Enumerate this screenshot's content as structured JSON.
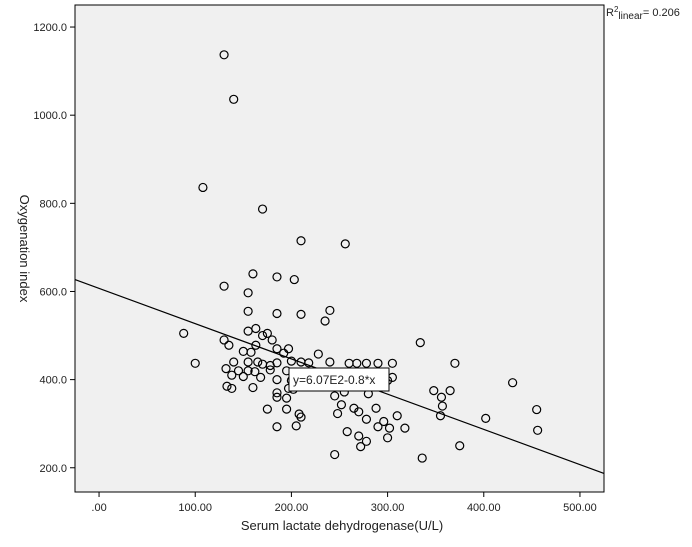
{
  "chart_data": {
    "type": "scatter",
    "title": "",
    "xlabel": "Serum lactate dehydrogenase(U/L)",
    "ylabel": "Oxygenation index",
    "xlim": [
      -25,
      525
    ],
    "ylim": [
      145,
      1250
    ],
    "x_ticks": [
      0,
      100,
      200,
      300,
      400,
      500
    ],
    "x_tick_labels": [
      ".00",
      "100.00",
      "200.00",
      "300.00",
      "400.00",
      "500.00"
    ],
    "y_ticks": [
      200,
      400,
      600,
      800,
      1000,
      1200
    ],
    "y_tick_labels": [
      "200.0",
      "400.0",
      "600.0",
      "800.0",
      "1000.0",
      "1200.0"
    ],
    "grid": false,
    "plot_background": "#f0f0f0",
    "marker_color": "#000000",
    "fit_line": {
      "intercept": 607,
      "slope": -0.8,
      "equation": "y=6.07E2-0.8*x",
      "x_range": [
        -25,
        525
      ]
    },
    "r2_label": {
      "prefix": "R",
      "sup": "2",
      "suffix": "linear",
      "value": "= 0.206"
    },
    "points": [
      [
        130,
        1137
      ],
      [
        140,
        1036
      ],
      [
        108,
        836
      ],
      [
        170,
        787
      ],
      [
        210,
        715
      ],
      [
        256,
        708
      ],
      [
        160,
        640
      ],
      [
        185,
        633
      ],
      [
        203,
        627
      ],
      [
        130,
        612
      ],
      [
        155,
        597
      ],
      [
        240,
        557
      ],
      [
        155,
        555
      ],
      [
        185,
        550
      ],
      [
        210,
        548
      ],
      [
        235,
        533
      ],
      [
        88,
        505
      ],
      [
        163,
        516
      ],
      [
        155,
        510
      ],
      [
        175,
        505
      ],
      [
        170,
        500
      ],
      [
        180,
        490
      ],
      [
        130,
        490
      ],
      [
        135,
        478
      ],
      [
        163,
        478
      ],
      [
        185,
        470
      ],
      [
        197,
        470
      ],
      [
        150,
        464
      ],
      [
        158,
        462
      ],
      [
        192,
        460
      ],
      [
        228,
        458
      ],
      [
        334,
        484
      ],
      [
        100,
        437
      ],
      [
        140,
        440
      ],
      [
        155,
        440
      ],
      [
        165,
        440
      ],
      [
        170,
        435
      ],
      [
        178,
        432
      ],
      [
        185,
        438
      ],
      [
        200,
        442
      ],
      [
        210,
        440
      ],
      [
        218,
        438
      ],
      [
        240,
        440
      ],
      [
        260,
        437
      ],
      [
        268,
        437
      ],
      [
        278,
        437
      ],
      [
        290,
        437
      ],
      [
        305,
        437
      ],
      [
        370,
        437
      ],
      [
        132,
        425
      ],
      [
        145,
        420
      ],
      [
        155,
        420
      ],
      [
        162,
        418
      ],
      [
        178,
        422
      ],
      [
        195,
        420
      ],
      [
        138,
        410
      ],
      [
        150,
        407
      ],
      [
        168,
        405
      ],
      [
        185,
        400
      ],
      [
        200,
        398
      ],
      [
        215,
        395
      ],
      [
        232,
        395
      ],
      [
        245,
        390
      ],
      [
        255,
        398
      ],
      [
        270,
        398
      ],
      [
        285,
        400
      ],
      [
        300,
        398
      ],
      [
        305,
        405
      ],
      [
        365,
        375
      ],
      [
        133,
        385
      ],
      [
        138,
        380
      ],
      [
        160,
        382
      ],
      [
        185,
        370
      ],
      [
        197,
        380
      ],
      [
        202,
        378
      ],
      [
        255,
        372
      ],
      [
        280,
        368
      ],
      [
        348,
        375
      ],
      [
        356,
        360
      ],
      [
        430,
        393
      ],
      [
        185,
        360
      ],
      [
        195,
        358
      ],
      [
        245,
        363
      ],
      [
        175,
        333
      ],
      [
        195,
        333
      ],
      [
        252,
        343
      ],
      [
        265,
        335
      ],
      [
        270,
        327
      ],
      [
        288,
        335
      ],
      [
        357,
        340
      ],
      [
        455,
        332
      ],
      [
        208,
        322
      ],
      [
        210,
        315
      ],
      [
        248,
        323
      ],
      [
        278,
        310
      ],
      [
        296,
        305
      ],
      [
        310,
        318
      ],
      [
        355,
        318
      ],
      [
        402,
        312
      ],
      [
        185,
        293
      ],
      [
        205,
        295
      ],
      [
        258,
        282
      ],
      [
        290,
        293
      ],
      [
        302,
        290
      ],
      [
        318,
        290
      ],
      [
        456,
        285
      ],
      [
        270,
        272
      ],
      [
        300,
        268
      ],
      [
        278,
        260
      ],
      [
        272,
        248
      ],
      [
        375,
        250
      ],
      [
        245,
        230
      ],
      [
        336,
        222
      ]
    ]
  }
}
